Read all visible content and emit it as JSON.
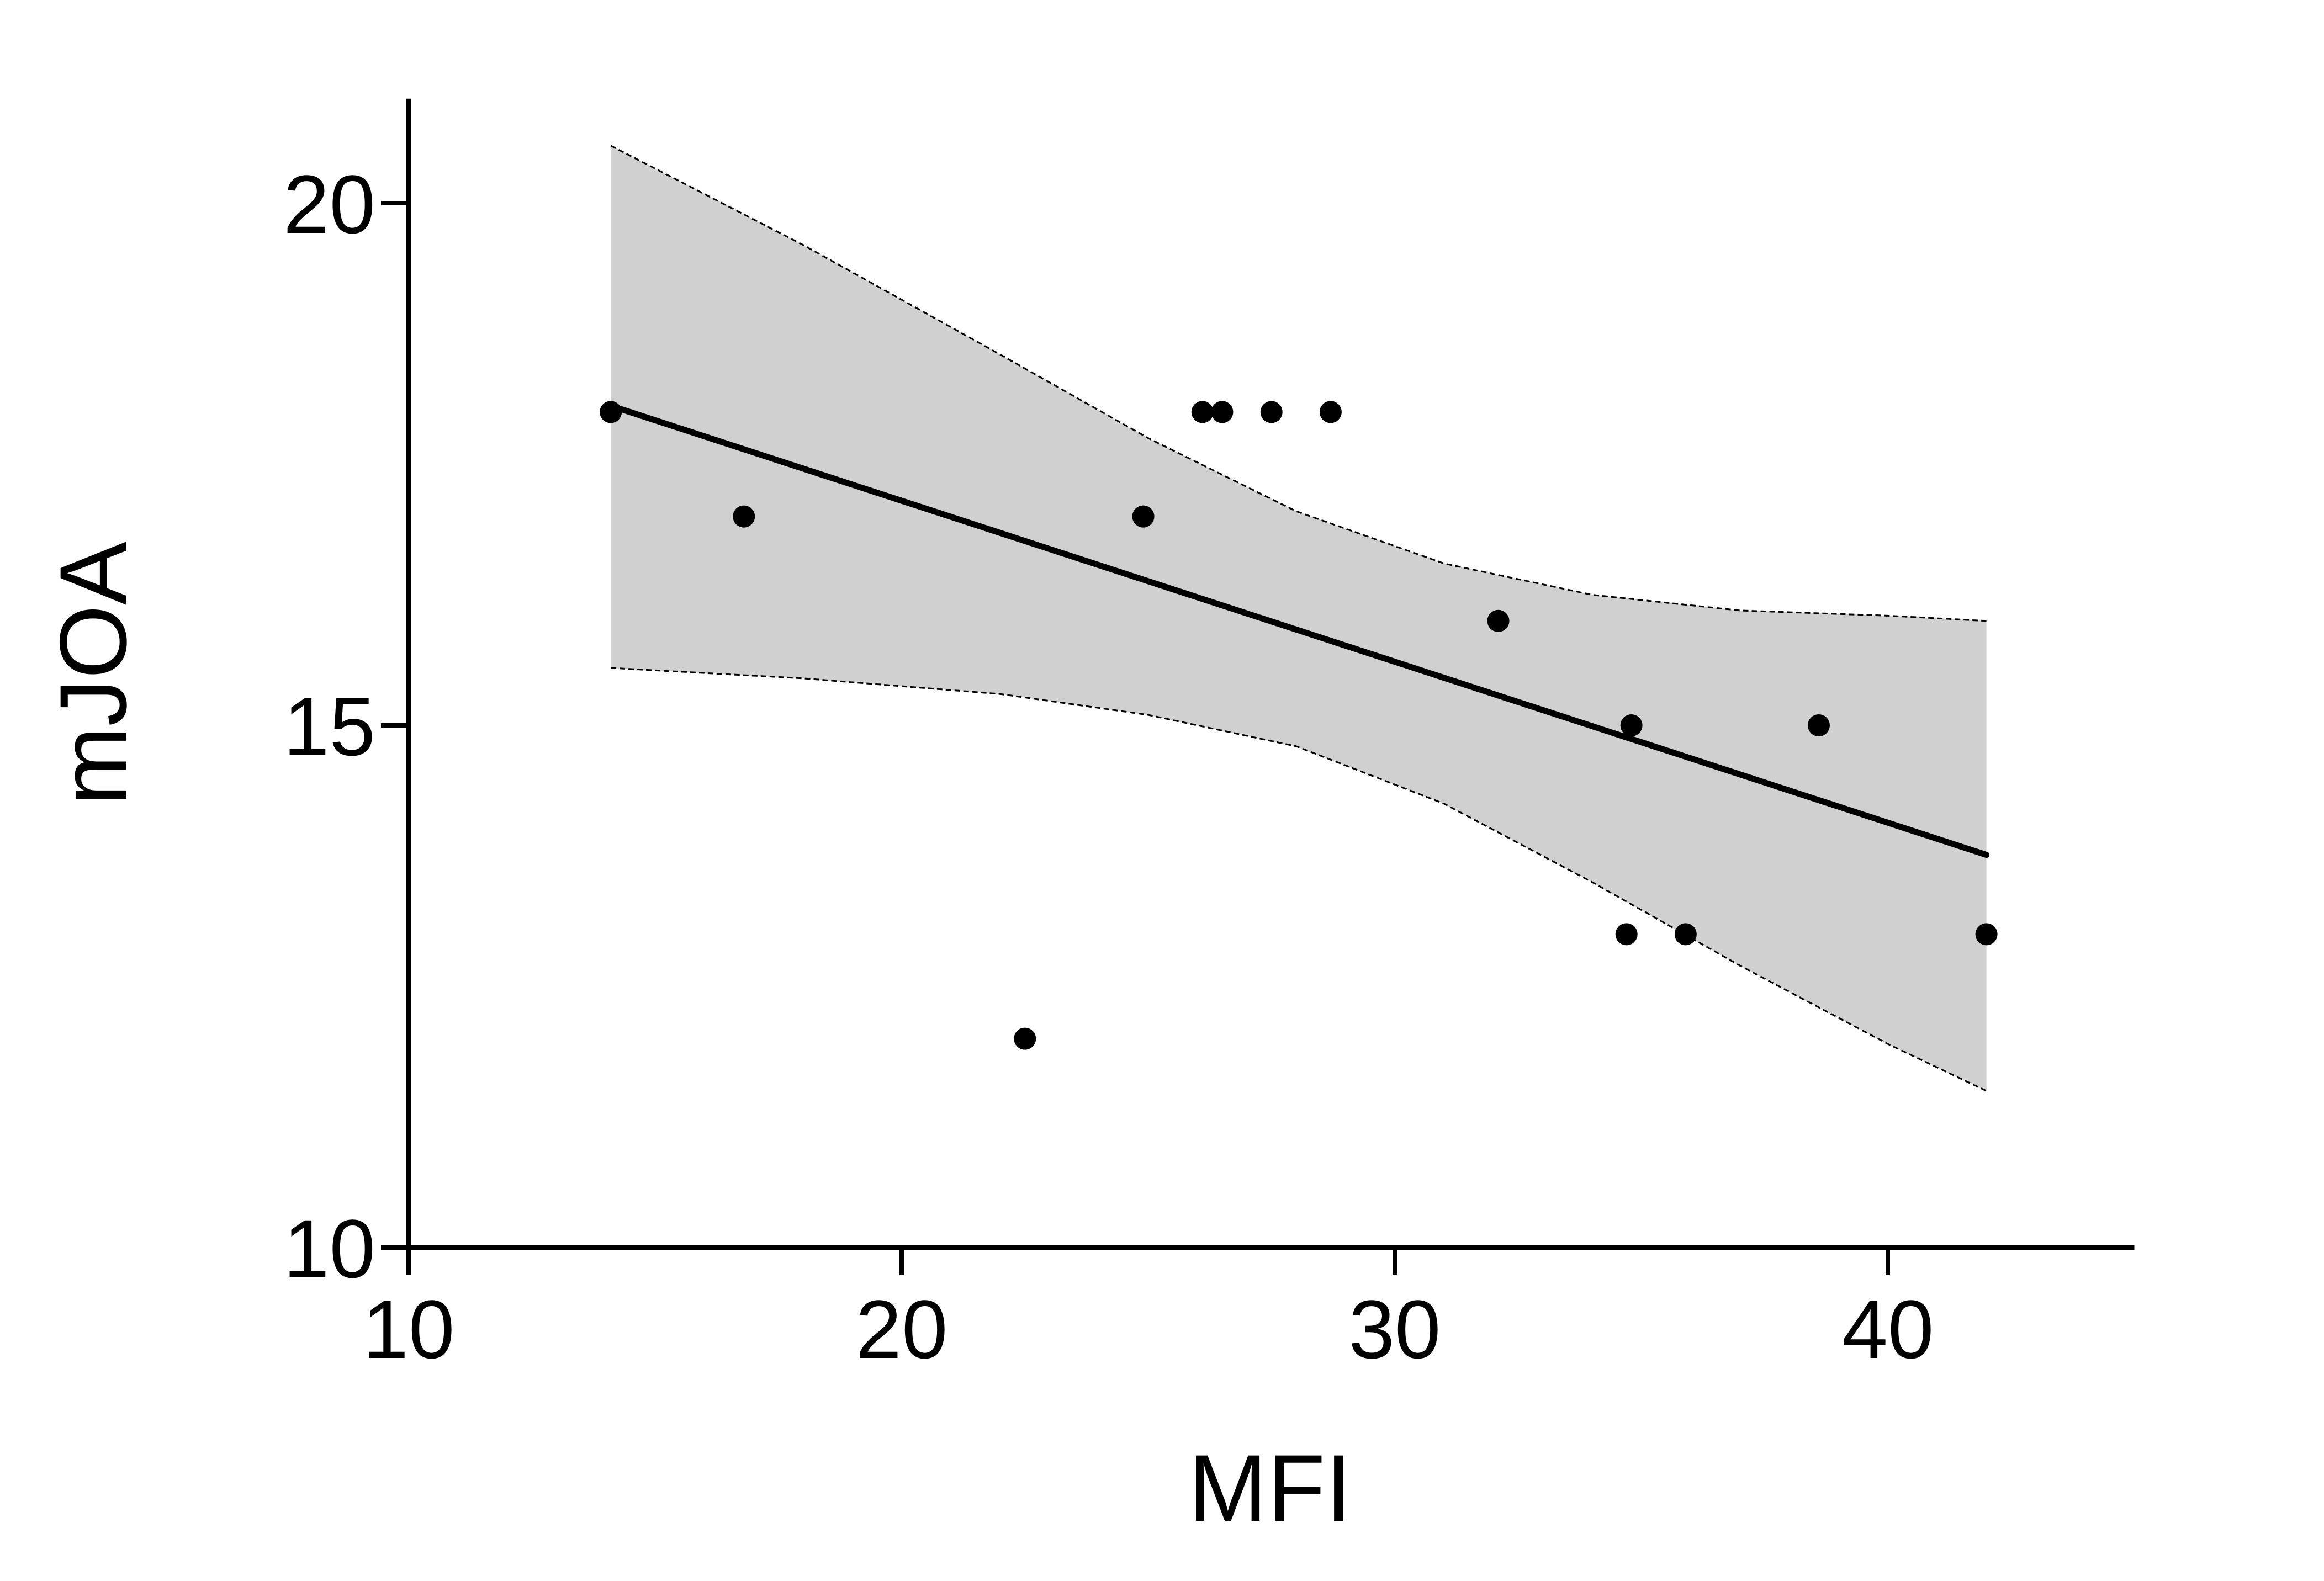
{
  "chart_data": {
    "type": "scatter",
    "title": "",
    "xlabel": "MFI",
    "ylabel": "mJOA",
    "xlim": [
      10,
      45
    ],
    "ylim": [
      10,
      21
    ],
    "xticks": [
      10,
      20,
      30,
      40
    ],
    "yticks": [
      10,
      15,
      20
    ],
    "x_tick_labels": [
      "10",
      "20",
      "30",
      "40"
    ],
    "y_tick_labels": [
      "10",
      "15",
      "20"
    ],
    "grid": false,
    "legend": "none",
    "points": [
      {
        "x": 14.1,
        "y": 18
      },
      {
        "x": 16.8,
        "y": 17
      },
      {
        "x": 22.5,
        "y": 12
      },
      {
        "x": 24.9,
        "y": 17
      },
      {
        "x": 26.1,
        "y": 18
      },
      {
        "x": 26.5,
        "y": 18
      },
      {
        "x": 27.5,
        "y": 18
      },
      {
        "x": 28.7,
        "y": 18
      },
      {
        "x": 32.1,
        "y": 16
      },
      {
        "x": 34.7,
        "y": 13
      },
      {
        "x": 34.8,
        "y": 15
      },
      {
        "x": 35.9,
        "y": 13
      },
      {
        "x": 38.6,
        "y": 15
      },
      {
        "x": 42.0,
        "y": 13
      }
    ],
    "regression_line": {
      "x": [
        14.1,
        42.0
      ],
      "y": [
        18.06,
        13.76
      ]
    },
    "confidence_band": {
      "x": [
        14.1,
        18,
        22,
        25,
        28,
        31,
        34,
        37,
        40,
        42.0
      ],
      "upper": [
        20.55,
        19.6,
        18.55,
        17.75,
        17.05,
        16.55,
        16.25,
        16.1,
        16.05,
        16.0
      ],
      "lower": [
        15.55,
        15.45,
        15.3,
        15.1,
        14.8,
        14.25,
        13.5,
        12.7,
        11.95,
        11.5
      ]
    },
    "colors": {
      "points": "#000000",
      "line": "#000000",
      "band_fill": "#d0d0d0",
      "band_edge": "#000000"
    }
  }
}
